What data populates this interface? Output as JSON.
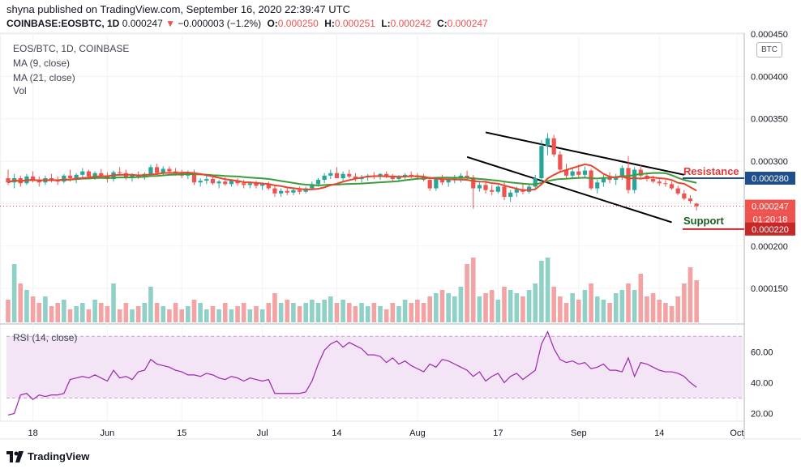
{
  "header": {
    "published": "shyna published on TradingView.com, September 16, 2020 22:39:47 UTC",
    "symbol": "COINBASE:EOSBTC, 1D",
    "last": "0.000247",
    "arrow": "▼",
    "change": "−0.000003 (−1.2%)",
    "o_label": "O:",
    "o": "0.000250",
    "h_label": "H:",
    "h": "0.000251",
    "l_label": "L:",
    "l": "0.000242",
    "c_label": "C:",
    "c": "0.000247"
  },
  "legend": {
    "title": "EOS/BTC, 1D, COINBASE",
    "ma9": "MA (9, close)",
    "ma21": "MA (21, close)",
    "vol": "Vol"
  },
  "rsi_label": "RSI (14, close)",
  "currency": "BTC",
  "brand": "TradingView",
  "colors": {
    "up": "#26a69a",
    "down": "#ef5350",
    "vol_up": "#8fd1c7",
    "vol_down": "#f3a3a3",
    "ma9": "#e8452c",
    "ma21": "#3d9b3d",
    "rsi_line": "#9c27b0",
    "rsi_band": "#f3e5f5",
    "resistance": "#e53935",
    "support": "#1b5e20",
    "res_tag": "#1e4f8a",
    "sup_tag": "#c62828",
    "price_tag": "#ef5350"
  },
  "chart_data": {
    "type": "candlestick",
    "x_ticks": [
      "18",
      "Jun",
      "15",
      "Jul",
      "14",
      "Aug",
      "17",
      "Sep",
      "14",
      "Oct"
    ],
    "price_ticks": [
      "0.000450",
      "0.000400",
      "0.000350",
      "0.000300",
      "0.000250",
      "0.000200",
      "0.000150"
    ],
    "ylim": [
      0.00011,
      0.00045
    ],
    "rsi_ticks": [
      "60.00",
      "40.00",
      "20.00"
    ],
    "rsi_band": [
      30,
      70
    ],
    "rsi_ylim": [
      15,
      78
    ],
    "last_price": "0.000247",
    "countdown": "01:20:18",
    "resistance": {
      "label": "Resistance",
      "value": "0.000280"
    },
    "support": {
      "label": "Support",
      "value": "0.000220"
    },
    "channel_upper": [
      [
        0.000334,
        0.000275
      ]
    ],
    "channel_lower": [
      [
        0.000305,
        0.000226
      ]
    ],
    "candles": [
      [
        0.00028,
        0.00029,
        0.000272,
        0.000275
      ],
      [
        0.000275,
        0.000285,
        0.000268,
        0.00028
      ],
      [
        0.00028,
        0.000283,
        0.00027,
        0.000274
      ],
      [
        0.000274,
        0.000285,
        0.000272,
        0.000282
      ],
      [
        0.000282,
        0.000288,
        0.000275,
        0.000278
      ],
      [
        0.000278,
        0.000282,
        0.00027,
        0.000275
      ],
      [
        0.000275,
        0.000283,
        0.000272,
        0.00028
      ],
      [
        0.00028,
        0.000285,
        0.000275,
        0.000278
      ],
      [
        0.000278,
        0.000282,
        0.000272,
        0.000276
      ],
      [
        0.000276,
        0.000285,
        0.000274,
        0.000283
      ],
      [
        0.000283,
        0.00029,
        0.000276,
        0.00028
      ],
      [
        0.00028,
        0.000286,
        0.000274,
        0.000284
      ],
      [
        0.000284,
        0.000292,
        0.00028,
        0.000288
      ],
      [
        0.000288,
        0.00029,
        0.00028,
        0.000282
      ],
      [
        0.000282,
        0.000288,
        0.000278,
        0.000286
      ],
      [
        0.000286,
        0.000291,
        0.00028,
        0.000283
      ],
      [
        0.000283,
        0.000287,
        0.000275,
        0.000279
      ],
      [
        0.000279,
        0.000289,
        0.000276,
        0.000287
      ],
      [
        0.000287,
        0.000293,
        0.000283,
        0.000286
      ],
      [
        0.000286,
        0.00029,
        0.000278,
        0.000281
      ],
      [
        0.000281,
        0.000286,
        0.000276,
        0.000284
      ],
      [
        0.000284,
        0.000288,
        0.000279,
        0.000282
      ],
      [
        0.000282,
        0.000287,
        0.000278,
        0.000285
      ],
      [
        0.000285,
        0.000296,
        0.000282,
        0.000293
      ],
      [
        0.000293,
        0.000297,
        0.000284,
        0.000286
      ],
      [
        0.000286,
        0.000294,
        0.000283,
        0.000291
      ],
      [
        0.000291,
        0.000294,
        0.000285,
        0.000288
      ],
      [
        0.000288,
        0.000292,
        0.000283,
        0.000286
      ],
      [
        0.000286,
        0.00029,
        0.00028,
        0.000283
      ],
      [
        0.000283,
        0.000289,
        0.000279,
        0.000286
      ],
      [
        0.000286,
        0.00029,
        0.000272,
        0.000275
      ],
      [
        0.000275,
        0.00028,
        0.00027,
        0.000277
      ],
      [
        0.000277,
        0.000283,
        0.000273,
        0.000279
      ],
      [
        0.000279,
        0.000282,
        0.000272,
        0.000274
      ],
      [
        0.000274,
        0.000278,
        0.000268,
        0.000276
      ],
      [
        0.000276,
        0.000281,
        0.000271,
        0.000273
      ],
      [
        0.000273,
        0.000279,
        0.00027,
        0.000277
      ],
      [
        0.000277,
        0.00028,
        0.000271,
        0.000274
      ],
      [
        0.000274,
        0.000278,
        0.000268,
        0.000272
      ],
      [
        0.000272,
        0.000276,
        0.000268,
        0.000274
      ],
      [
        0.000274,
        0.000277,
        0.000268,
        0.000271
      ],
      [
        0.000271,
        0.000275,
        0.000266,
        0.000273
      ],
      [
        0.000273,
        0.000276,
        0.000266,
        0.000268
      ],
      [
        0.000268,
        0.000272,
        0.000258,
        0.000262
      ],
      [
        0.000262,
        0.000268,
        0.000258,
        0.000265
      ],
      [
        0.000265,
        0.000269,
        0.00026,
        0.000263
      ],
      [
        0.000263,
        0.000268,
        0.00026,
        0.000266
      ],
      [
        0.000266,
        0.00027,
        0.000261,
        0.000264
      ],
      [
        0.000264,
        0.00027,
        0.000262,
        0.000268
      ],
      [
        0.000268,
        0.000276,
        0.000266,
        0.000273
      ],
      [
        0.000273,
        0.00028,
        0.00027,
        0.000278
      ],
      [
        0.000278,
        0.000286,
        0.000274,
        0.000283
      ],
      [
        0.000283,
        0.00029,
        0.000279,
        0.000286
      ],
      [
        0.000286,
        0.000293,
        0.000282,
        0.00028
      ],
      [
        0.00028,
        0.000288,
        0.000277,
        0.000285
      ],
      [
        0.000285,
        0.00029,
        0.00028,
        0.000282
      ],
      [
        0.000282,
        0.000286,
        0.000276,
        0.000279
      ],
      [
        0.000279,
        0.000284,
        0.000275,
        0.000281
      ],
      [
        0.000281,
        0.000285,
        0.000277,
        0.000283
      ],
      [
        0.000283,
        0.000287,
        0.000279,
        0.000282
      ],
      [
        0.000282,
        0.000286,
        0.000278,
        0.000285
      ],
      [
        0.000285,
        0.000288,
        0.00028,
        0.000282
      ],
      [
        0.000282,
        0.000285,
        0.000276,
        0.000279
      ],
      [
        0.000279,
        0.000284,
        0.000276,
        0.000282
      ],
      [
        0.000282,
        0.000286,
        0.000279,
        0.000284
      ],
      [
        0.000284,
        0.000288,
        0.00028,
        0.000283
      ],
      [
        0.000283,
        0.000286,
        0.000278,
        0.000281
      ],
      [
        0.000281,
        0.000285,
        0.000276,
        0.000278
      ],
      [
        0.000278,
        0.000282,
        0.000265,
        0.000268
      ],
      [
        0.000268,
        0.000281,
        0.000265,
        0.000279
      ],
      [
        0.000279,
        0.000284,
        0.000272,
        0.000275
      ],
      [
        0.000275,
        0.00028,
        0.00027,
        0.000278
      ],
      [
        0.000278,
        0.000284,
        0.000274,
        0.00028
      ],
      [
        0.00028,
        0.000286,
        0.000275,
        0.000283
      ],
      [
        0.000283,
        0.000289,
        0.000278,
        0.000281
      ],
      [
        0.000281,
        0.000284,
        0.000244,
        0.000268
      ],
      [
        0.000268,
        0.000276,
        0.000264,
        0.000272
      ],
      [
        0.000272,
        0.000276,
        0.000262,
        0.000266
      ],
      [
        0.000266,
        0.000272,
        0.00026,
        0.000264
      ],
      [
        0.000264,
        0.000272,
        0.000262,
        0.00027
      ],
      [
        0.00027,
        0.000276,
        0.000254,
        0.000258
      ],
      [
        0.000258,
        0.000266,
        0.000252,
        0.000263
      ],
      [
        0.000263,
        0.00027,
        0.000258,
        0.000267
      ],
      [
        0.000267,
        0.000274,
        0.000261,
        0.000264
      ],
      [
        0.000264,
        0.000272,
        0.000262,
        0.00027
      ],
      [
        0.00027,
        0.000284,
        0.000266,
        0.00028
      ],
      [
        0.00028,
        0.000325,
        0.000276,
        0.000318
      ],
      [
        0.000318,
        0.000333,
        0.000307,
        0.000327
      ],
      [
        0.000327,
        0.000331,
        0.000305,
        0.000308
      ],
      [
        0.000308,
        0.000312,
        0.000287,
        0.00029
      ],
      [
        0.00029,
        0.000297,
        0.000279,
        0.000283
      ],
      [
        0.000283,
        0.000293,
        0.000279,
        0.000288
      ],
      [
        0.000288,
        0.000296,
        0.00028,
        0.000284
      ],
      [
        0.000284,
        0.000294,
        0.00028,
        0.000289
      ],
      [
        0.000289,
        0.000291,
        0.000266,
        0.000268
      ],
      [
        0.000268,
        0.000278,
        0.000262,
        0.000275
      ],
      [
        0.000275,
        0.000284,
        0.00027,
        0.000281
      ],
      [
        0.000281,
        0.000287,
        0.000274,
        0.000278
      ],
      [
        0.000278,
        0.000285,
        0.000272,
        0.000282
      ],
      [
        0.000282,
        0.000295,
        0.000278,
        0.000292
      ],
      [
        0.000292,
        0.000306,
        0.000262,
        0.000266
      ],
      [
        0.000266,
        0.000293,
        0.000262,
        0.00029
      ],
      [
        0.00029,
        0.000296,
        0.00028,
        0.000283
      ],
      [
        0.000283,
        0.000287,
        0.000276,
        0.000279
      ],
      [
        0.000279,
        0.000283,
        0.000274,
        0.000276
      ],
      [
        0.000276,
        0.000279,
        0.000271,
        0.000274
      ],
      [
        0.000274,
        0.000278,
        0.00027,
        0.000273
      ],
      [
        0.000273,
        0.000276,
        0.000266,
        0.000268
      ],
      [
        0.000268,
        0.000271,
        0.00026,
        0.000262
      ],
      [
        0.000262,
        0.000266,
        0.000254,
        0.000256
      ],
      [
        0.000256,
        0.00026,
        0.00025,
        0.000253
      ],
      [
        0.00025,
        0.000251,
        0.000242,
        0.000247
      ]
    ],
    "volume": [
      0.35,
      0.9,
      0.6,
      0.5,
      0.4,
      0.3,
      0.4,
      0.25,
      0.3,
      0.35,
      0.2,
      0.25,
      0.3,
      0.2,
      0.35,
      0.3,
      0.25,
      0.6,
      0.2,
      0.3,
      0.2,
      0.25,
      0.3,
      0.55,
      0.3,
      0.25,
      0.2,
      0.3,
      0.2,
      0.25,
      0.35,
      0.3,
      0.2,
      0.25,
      0.2,
      0.3,
      0.2,
      0.25,
      0.3,
      0.2,
      0.25,
      0.2,
      0.3,
      0.45,
      0.3,
      0.35,
      0.3,
      0.25,
      0.3,
      0.35,
      0.3,
      0.35,
      0.4,
      0.3,
      0.35,
      0.3,
      0.25,
      0.3,
      0.25,
      0.3,
      0.25,
      0.2,
      0.3,
      0.25,
      0.35,
      0.3,
      0.35,
      0.3,
      0.4,
      0.45,
      0.5,
      0.45,
      0.4,
      0.55,
      0.9,
      1.0,
      0.4,
      0.45,
      0.5,
      0.35,
      0.55,
      0.5,
      0.45,
      0.4,
      0.5,
      0.6,
      0.95,
      1.0,
      0.55,
      0.4,
      0.3,
      0.45,
      0.35,
      0.5,
      0.6,
      0.4,
      0.35,
      0.3,
      0.45,
      0.5,
      0.6,
      0.5,
      0.75,
      0.4,
      0.45,
      0.35,
      0.3,
      0.25,
      0.4,
      0.6,
      0.85,
      0.65
    ],
    "rsi": [
      19,
      20,
      32,
      33,
      29,
      32,
      31,
      32,
      32,
      33,
      42,
      43,
      44,
      43,
      45,
      43,
      41,
      48,
      43,
      44,
      42,
      47,
      48,
      55,
      52,
      51,
      50,
      48,
      47,
      45,
      45,
      44,
      46,
      45,
      43,
      42,
      44,
      43,
      41,
      43,
      42,
      41,
      42,
      33,
      33,
      33,
      33,
      33,
      34,
      41,
      52,
      61,
      65,
      67,
      63,
      66,
      64,
      62,
      58,
      58,
      57,
      53,
      56,
      52,
      54,
      51,
      49,
      47,
      52,
      50,
      55,
      54,
      52,
      50,
      48,
      44,
      47,
      41,
      44,
      46,
      40,
      44,
      46,
      42,
      45,
      48,
      65,
      73,
      62,
      55,
      53,
      54,
      52,
      53,
      49,
      50,
      52,
      48,
      48,
      47,
      56,
      44,
      53,
      52,
      50,
      48,
      47,
      47,
      46,
      44,
      40,
      37
    ]
  }
}
